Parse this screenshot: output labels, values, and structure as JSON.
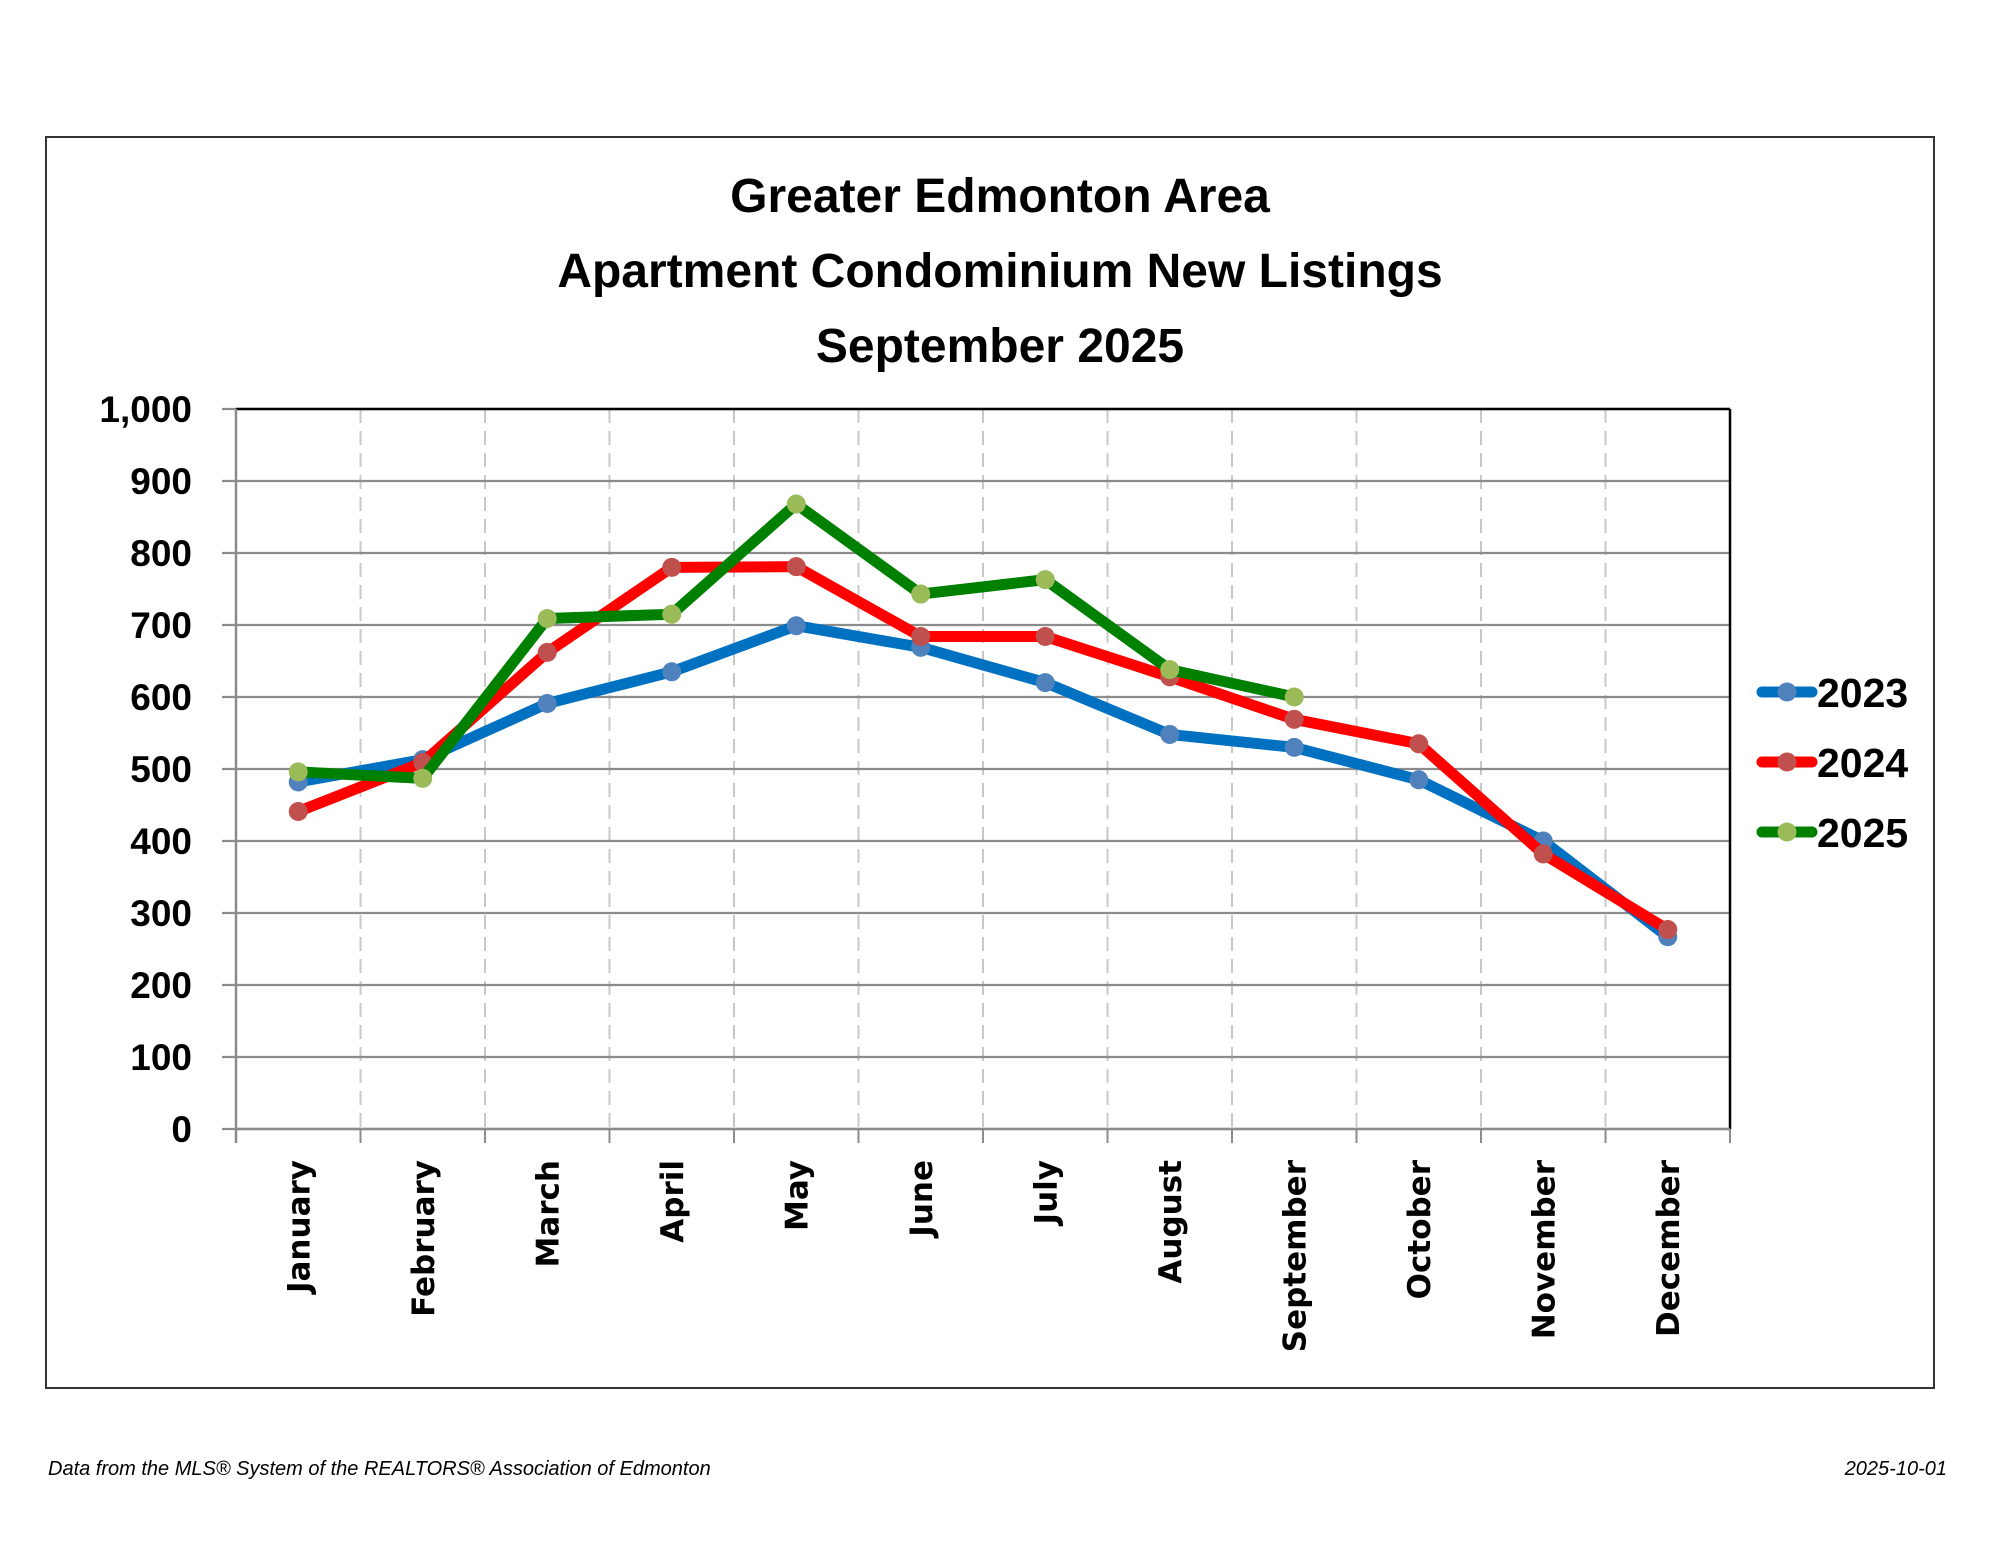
{
  "chart_data": {
    "type": "line",
    "title": [
      "Greater Edmonton Area",
      "Apartment Condominium New Listings",
      "September 2025"
    ],
    "xlabel": "",
    "ylabel": "",
    "categories": [
      "January",
      "February",
      "March",
      "April",
      "May",
      "June",
      "July",
      "August",
      "September",
      "October",
      "November",
      "December"
    ],
    "ylim": [
      0,
      1000
    ],
    "yticks": [
      0,
      100,
      200,
      300,
      400,
      500,
      600,
      700,
      800,
      900,
      1000
    ],
    "ytick_labels": [
      "0",
      "100",
      "200",
      "300",
      "400",
      "500",
      "600",
      "700",
      "800",
      "900",
      "1,000"
    ],
    "grid": {
      "horizontal": "solid",
      "vertical": "dashed"
    },
    "legend_position": "right",
    "series": [
      {
        "name": "2023",
        "line_color": "#0070C0",
        "marker_color": "#4F81BD",
        "values": [
          482,
          513,
          591,
          635,
          699,
          669,
          620,
          548,
          530,
          485,
          400,
          267
        ]
      },
      {
        "name": "2024",
        "line_color": "#FF0000",
        "marker_color": "#C0504D",
        "values": [
          441,
          509,
          662,
          780,
          781,
          684,
          684,
          628,
          569,
          535,
          382,
          277
        ]
      },
      {
        "name": "2025",
        "line_color": "#008000",
        "marker_color": "#9BBB59",
        "values": [
          496,
          487,
          709,
          715,
          868,
          743,
          763,
          638,
          600,
          null,
          null,
          null
        ]
      }
    ]
  },
  "footer": {
    "source": "Data from the MLS® System of the REALTORS® Association of Edmonton",
    "date": "2025-10-01"
  }
}
